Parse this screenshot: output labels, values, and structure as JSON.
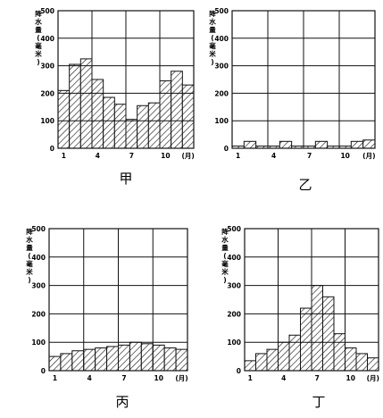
{
  "chart_data": [
    {
      "type": "bar",
      "panel_label": "甲",
      "ylabel": "降水量(毫米)",
      "months": [
        1,
        2,
        3,
        4,
        5,
        6,
        7,
        8,
        9,
        10,
        11,
        12
      ],
      "values": [
        210,
        305,
        325,
        250,
        185,
        160,
        105,
        155,
        165,
        245,
        280,
        230
      ],
      "ylim": [
        0,
        500
      ],
      "yticks": [
        "0",
        "100",
        "200",
        "300",
        "400",
        "500"
      ],
      "xticks": [
        "1",
        "4",
        "7",
        "10",
        "(月)"
      ],
      "grid": true
    },
    {
      "type": "bar",
      "panel_label": "乙",
      "ylabel": "降水量(毫米)",
      "months": [
        1,
        2,
        3,
        4,
        5,
        6,
        7,
        8,
        9,
        10,
        11,
        12
      ],
      "values": [
        8,
        25,
        8,
        8,
        25,
        8,
        8,
        25,
        8,
        8,
        25,
        30
      ],
      "ylim": [
        0,
        500
      ],
      "yticks": [
        "0",
        "100",
        "200",
        "300",
        "400",
        "500"
      ],
      "xticks": [
        "1",
        "4",
        "7",
        "10",
        "(月)"
      ],
      "grid": true
    },
    {
      "type": "bar",
      "panel_label": "丙",
      "ylabel": "降水量(毫米)",
      "months": [
        1,
        2,
        3,
        4,
        5,
        6,
        7,
        8,
        9,
        10,
        11,
        12
      ],
      "values": [
        50,
        60,
        70,
        75,
        80,
        85,
        90,
        100,
        95,
        90,
        80,
        75
      ],
      "ylim": [
        0,
        500
      ],
      "yticks": [
        "0",
        "100",
        "200",
        "300",
        "400",
        "500"
      ],
      "xticks": [
        "1",
        "4",
        "7",
        "10",
        "(月)"
      ],
      "grid": true
    },
    {
      "type": "bar",
      "panel_label": "丁",
      "ylabel": "降水量(毫米)",
      "months": [
        1,
        2,
        3,
        4,
        5,
        6,
        7,
        8,
        9,
        10,
        11,
        12
      ],
      "values": [
        35,
        60,
        75,
        100,
        125,
        220,
        300,
        260,
        130,
        80,
        60,
        45
      ],
      "ylim": [
        0,
        500
      ],
      "yticks": [
        "0",
        "100",
        "200",
        "300",
        "400",
        "500"
      ],
      "xticks": [
        "1",
        "4",
        "7",
        "10",
        "(月)"
      ],
      "grid": true
    }
  ]
}
